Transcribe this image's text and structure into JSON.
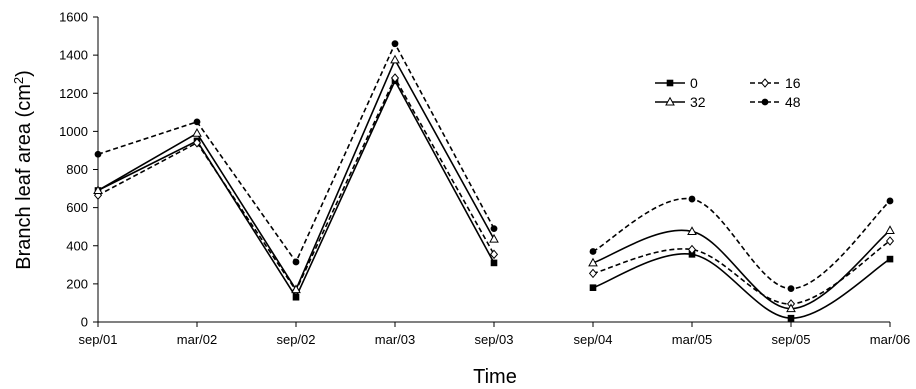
{
  "chart_data": {
    "type": "line",
    "xlabel": "Time",
    "ylabel": "Branch leaf area (cm",
    "ylabel_sup": "2",
    "ylabel_close": ")",
    "ylim": [
      0,
      1600
    ],
    "yticks": [
      0,
      200,
      400,
      600,
      800,
      1000,
      1200,
      1400,
      1600
    ],
    "categories": [
      "sep/01",
      "mar/02",
      "sep/02",
      "mar/03",
      "sep/03",
      "sep/04",
      "mar/05",
      "sep/05",
      "mar/06"
    ],
    "legend_position": "top-right",
    "segments": [
      {
        "from": 0,
        "to": 4,
        "curve": "straight"
      },
      {
        "from": 5,
        "to": 8,
        "curve": "smooth"
      }
    ],
    "series": [
      {
        "name": "0",
        "marker": "square-filled",
        "dash": "solid",
        "values": [
          690,
          950,
          130,
          1265,
          310,
          180,
          355,
          20,
          330
        ]
      },
      {
        "name": "16",
        "marker": "diamond-open",
        "dash": "dashed",
        "values": [
          665,
          940,
          165,
          1280,
          355,
          255,
          380,
          95,
          425
        ]
      },
      {
        "name": "32",
        "marker": "triangle-open",
        "dash": "solid",
        "values": [
          690,
          990,
          170,
          1375,
          435,
          310,
          475,
          70,
          480
        ]
      },
      {
        "name": "48",
        "marker": "circle-filled",
        "dash": "dashed",
        "values": [
          880,
          1050,
          315,
          1460,
          490,
          370,
          645,
          175,
          635
        ]
      }
    ]
  }
}
